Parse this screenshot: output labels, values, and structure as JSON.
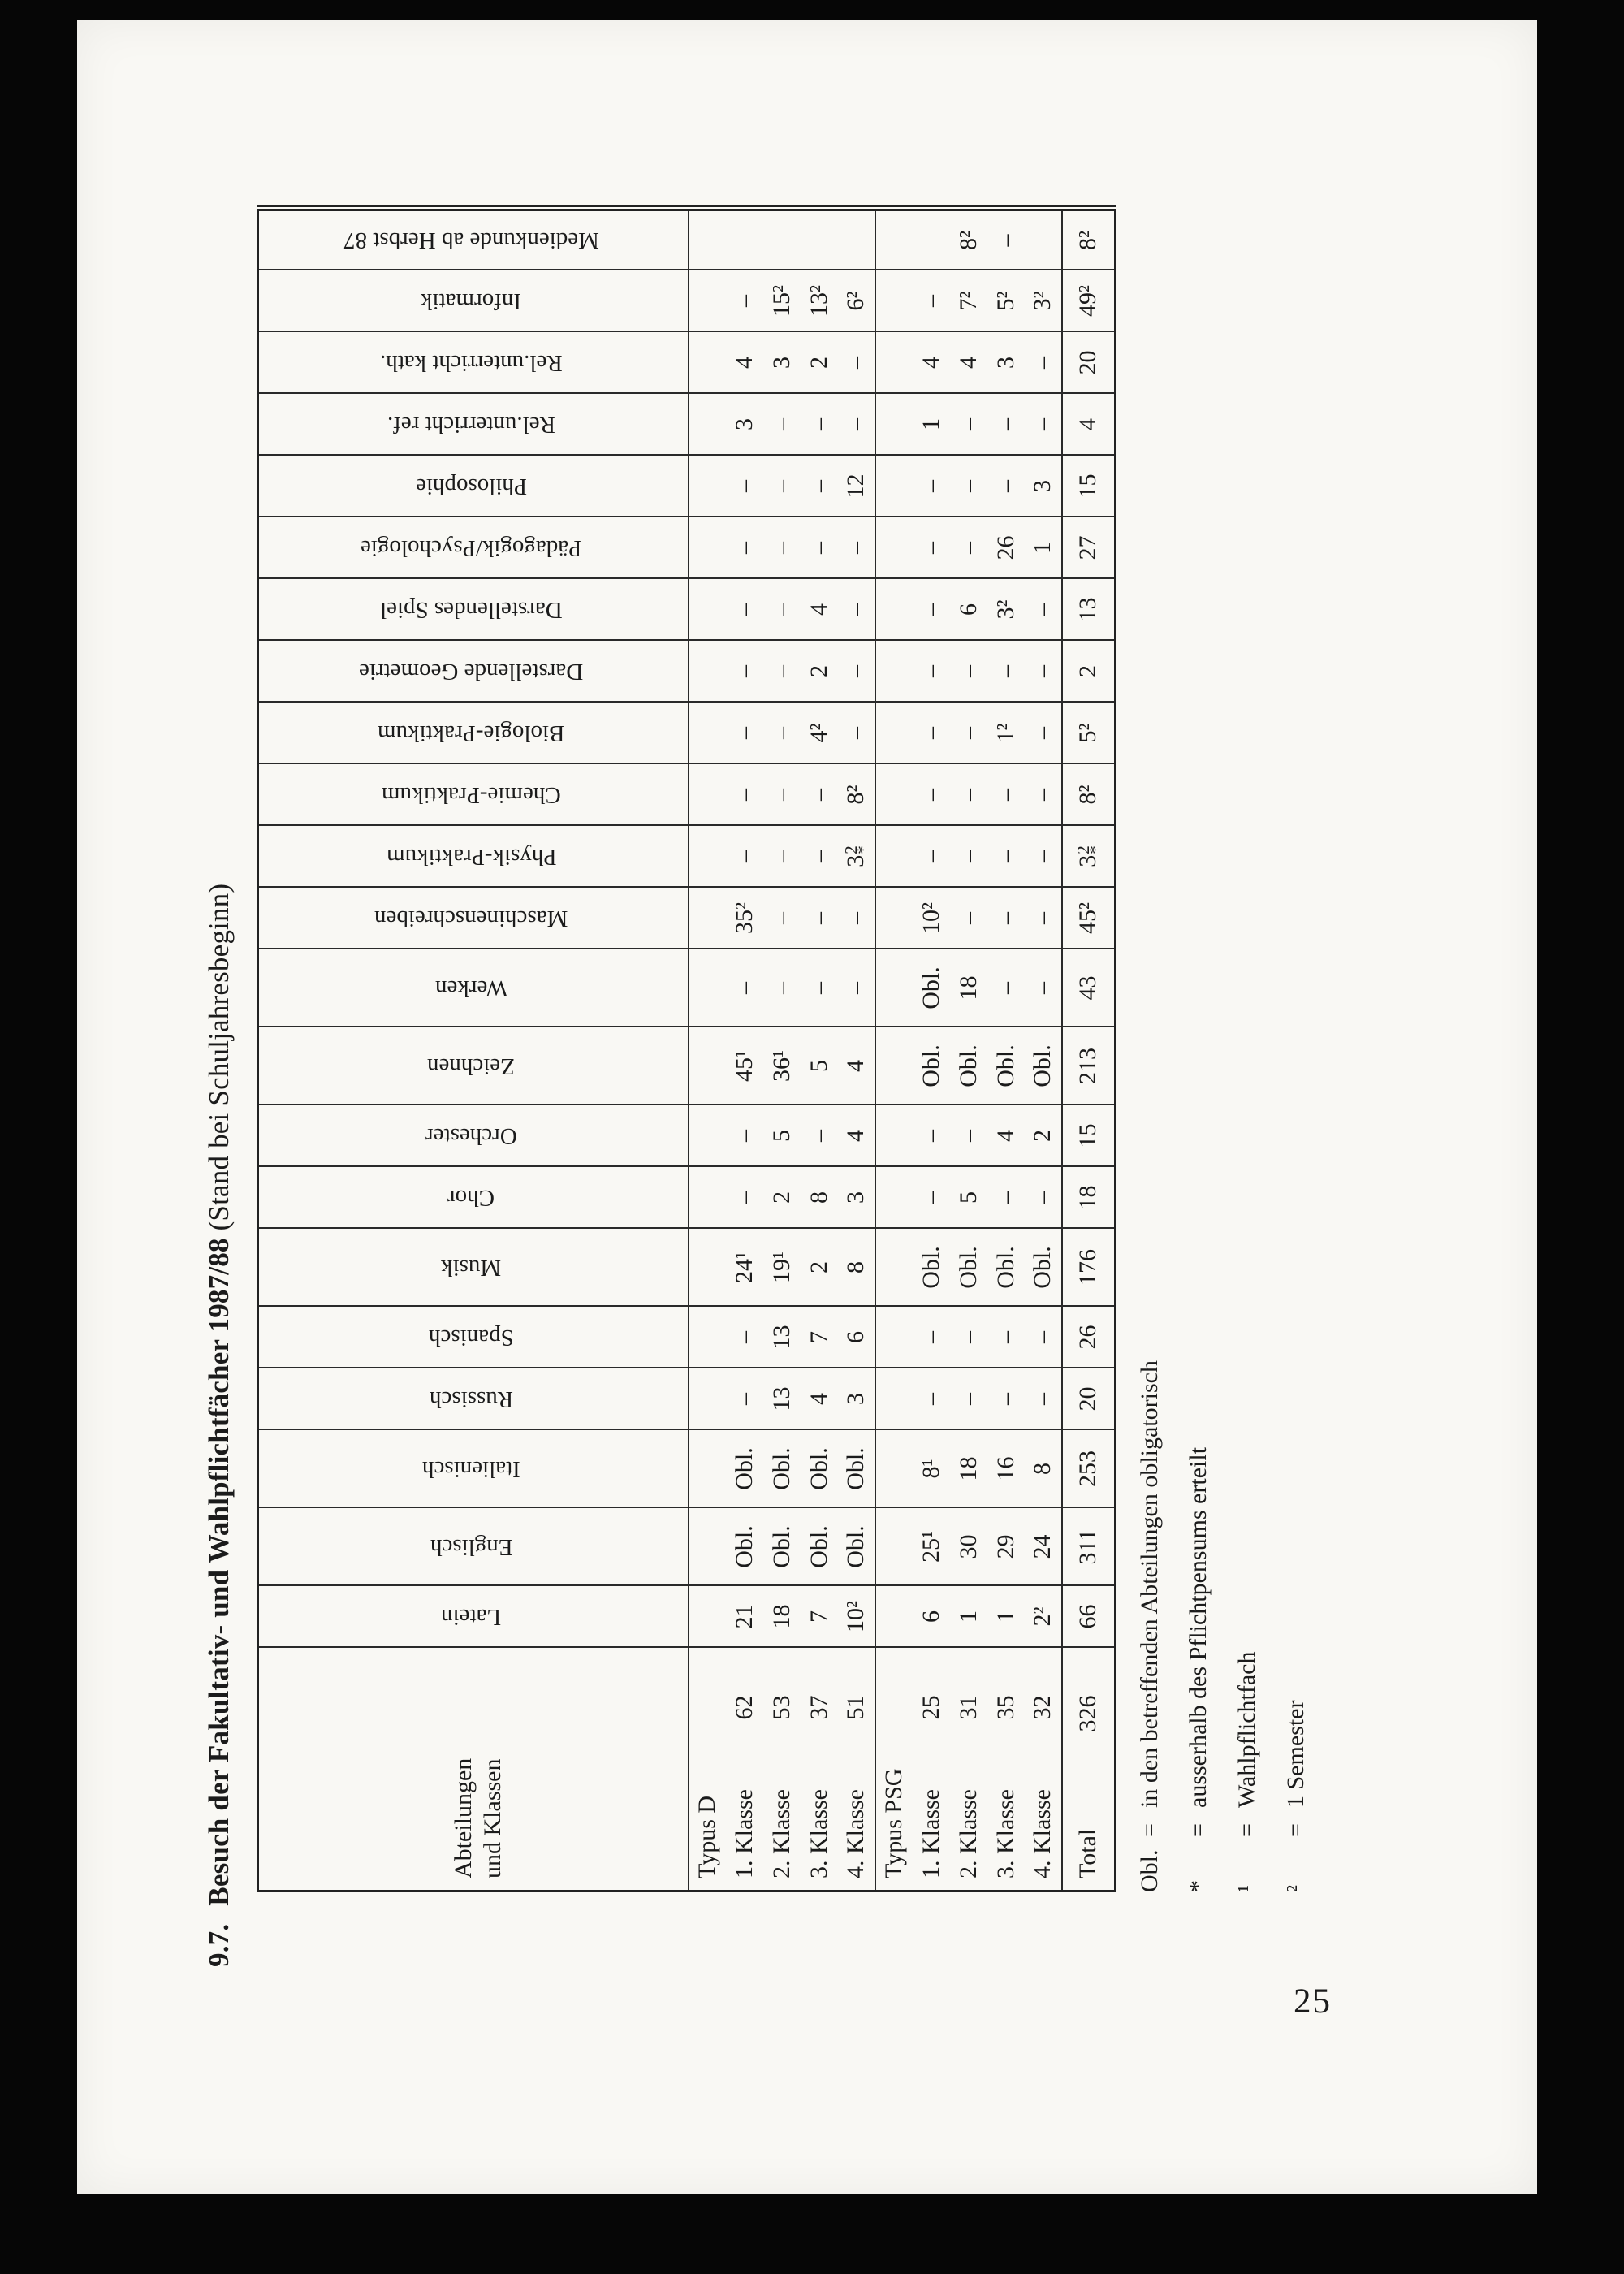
{
  "title": {
    "number": "9.7.",
    "main": "Besuch der Fakultativ- und Wahlpflichtfächer 1987/88",
    "suffix": "(Stand bei Schuljahresbeginn)"
  },
  "page_number": "25",
  "table": {
    "corner_lines": [
      "Abteilungen",
      "und Klassen"
    ],
    "subjects": [
      "Latein",
      "Englisch",
      "Italienisch",
      "Russisch",
      "Spanisch",
      "Musik",
      "Chor",
      "Orchester",
      "Zeichnen",
      "Werken",
      "Maschinenschreiben",
      "Physik-Praktikum",
      "Chemie-Praktikum",
      "Biologie-Praktikum",
      "Darstellende Geometrie",
      "Darstellendes Spiel",
      "Pädagogik/Psychologie",
      "Philosophie",
      "Rel.unterricht ref.",
      "Rel.unterricht kath.",
      "Informatik",
      "Medienkunde ab Herbst 87"
    ],
    "groups": [
      {
        "label": "Typus D",
        "rows": [
          {
            "label": "1. Klasse",
            "size": "62",
            "values": [
              "21",
              "Obl.",
              "Obl.",
              "–",
              "–",
              "24¹",
              "–",
              "–",
              "45¹",
              "–",
              "35²",
              "–",
              "–",
              "–",
              "–",
              "–",
              "–",
              "–",
              "3",
              "4",
              "–",
              ""
            ]
          },
          {
            "label": "2. Klasse",
            "size": "53",
            "values": [
              "18",
              "Obl.",
              "Obl.",
              "13",
              "13",
              "19¹",
              "2",
              "5",
              "36¹",
              "–",
              "–",
              "–",
              "–",
              "–",
              "–",
              "–",
              "–",
              "–",
              "–",
              "3",
              "15²",
              ""
            ]
          },
          {
            "label": "3. Klasse",
            "size": "37",
            "values": [
              "7",
              "Obl.",
              "Obl.",
              "4",
              "7",
              "2",
              "8",
              "–",
              "5",
              "–",
              "–",
              "–",
              "–",
              "4²",
              "2",
              "4",
              "–",
              "–",
              "–",
              "2",
              "13²",
              ""
            ]
          },
          {
            "label": "4. Klasse",
            "size": "51",
            "values": [
              "10²",
              "Obl.",
              "Obl.",
              "3",
              "6",
              "8",
              "3",
              "4",
              "4",
              "–",
              "–",
              "3²*",
              "8²",
              "–",
              "–",
              "–",
              "–",
              "12",
              "–",
              "–",
              "6²",
              ""
            ]
          }
        ]
      },
      {
        "label": "Typus PSG",
        "rows": [
          {
            "label": "1. Klasse",
            "size": "25",
            "values": [
              "6",
              "25¹",
              "8¹",
              "–",
              "–",
              "Obl.",
              "–",
              "–",
              "Obl.",
              "Obl.",
              "10²",
              "–",
              "–",
              "–",
              "–",
              "–",
              "–",
              "–",
              "1",
              "4",
              "–",
              ""
            ]
          },
          {
            "label": "2. Klasse",
            "size": "31",
            "values": [
              "1",
              "30",
              "18",
              "–",
              "–",
              "Obl.",
              "5",
              "–",
              "Obl.",
              "18",
              "–",
              "–",
              "–",
              "–",
              "–",
              "6",
              "–",
              "–",
              "–",
              "4",
              "7²",
              "8²"
            ]
          },
          {
            "label": "3. Klasse",
            "size": "35",
            "values": [
              "1",
              "29",
              "16",
              "–",
              "–",
              "Obl.",
              "–",
              "4",
              "Obl.",
              "–",
              "–",
              "–",
              "–",
              "1²",
              "–",
              "3²",
              "26",
              "–",
              "–",
              "3",
              "5²",
              "–"
            ]
          },
          {
            "label": "4. Klasse",
            "size": "32",
            "values": [
              "2²",
              "24",
              "8",
              "–",
              "–",
              "Obl.",
              "–",
              "2",
              "Obl.",
              "–",
              "–",
              "–",
              "–",
              "–",
              "–",
              "–",
              "1",
              "3",
              "–",
              "–",
              "3²",
              ""
            ]
          }
        ]
      }
    ],
    "total_row": {
      "label": "Total",
      "size": "326",
      "values": [
        "66",
        "311",
        "253",
        "20",
        "26",
        "176",
        "18",
        "15",
        "213",
        "43",
        "45²",
        "3²*",
        "8²",
        "5²",
        "2",
        "13",
        "27",
        "15",
        "4",
        "20",
        "49²",
        "8²"
      ]
    }
  },
  "footnotes": {
    "equals": "=",
    "items": [
      {
        "marker": "Obl.",
        "text": "in den betreffenden Abteilungen obligatorisch"
      },
      {
        "marker": "*",
        "text": "ausserhalb des Pflichtpensums erteilt"
      },
      {
        "marker": "¹",
        "text": "Wahlpflichtfach"
      },
      {
        "marker": "²",
        "text": "1 Semester"
      }
    ]
  }
}
